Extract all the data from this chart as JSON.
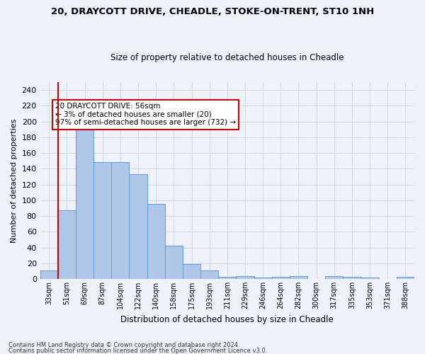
{
  "title1": "20, DRAYCOTT DRIVE, CHEADLE, STOKE-ON-TRENT, ST10 1NH",
  "title2": "Size of property relative to detached houses in Cheadle",
  "xlabel": "Distribution of detached houses by size in Cheadle",
  "ylabel": "Number of detached properties",
  "bar_color": "#aec6e8",
  "bar_edge_color": "#5b9bd5",
  "annotation_box_color": "#ffffff",
  "annotation_box_edge": "#cc0000",
  "vline_color": "#cc0000",
  "grid_color": "#d0d8e8",
  "categories": [
    "33sqm",
    "51sqm",
    "69sqm",
    "87sqm",
    "104sqm",
    "122sqm",
    "140sqm",
    "158sqm",
    "175sqm",
    "193sqm",
    "211sqm",
    "229sqm",
    "246sqm",
    "264sqm",
    "282sqm",
    "300sqm",
    "317sqm",
    "335sqm",
    "353sqm",
    "371sqm",
    "388sqm"
  ],
  "values": [
    11,
    87,
    195,
    148,
    148,
    133,
    95,
    42,
    19,
    11,
    3,
    4,
    2,
    3,
    4,
    0,
    4,
    3,
    2,
    0,
    3
  ],
  "ylim": [
    0,
    250
  ],
  "yticks": [
    0,
    20,
    40,
    60,
    80,
    100,
    120,
    140,
    160,
    180,
    200,
    220,
    240
  ],
  "vline_x_index": 1,
  "annotation_text": "20 DRAYCOTT DRIVE: 56sqm\n← 3% of detached houses are smaller (20)\n97% of semi-detached houses are larger (732) →",
  "footnote1": "Contains HM Land Registry data © Crown copyright and database right 2024.",
  "footnote2": "Contains public sector information licensed under the Open Government Licence v3.0.",
  "bg_color": "#eef2f8"
}
